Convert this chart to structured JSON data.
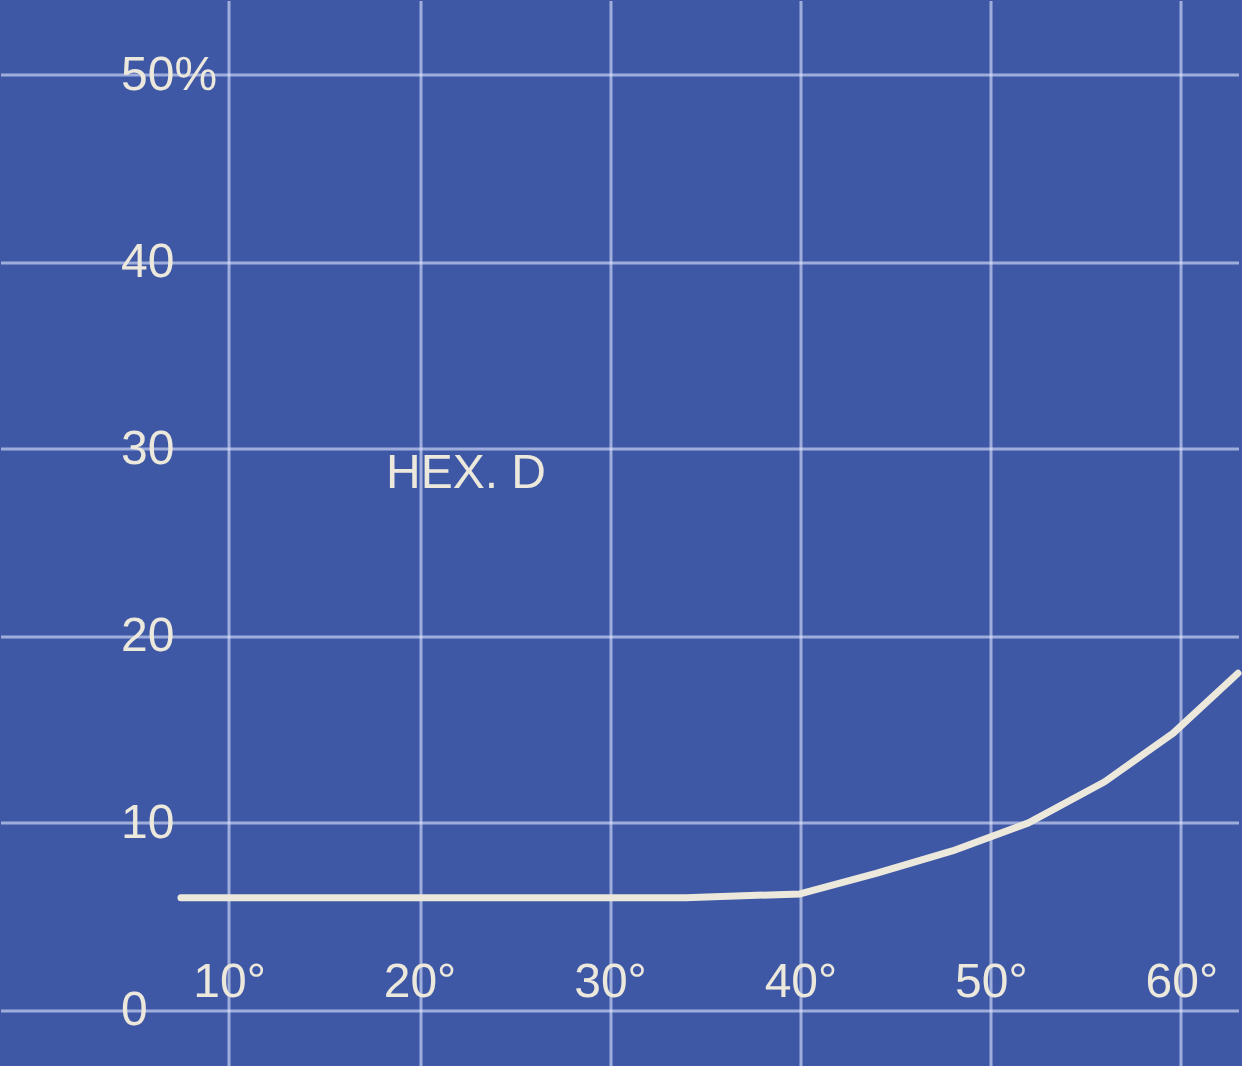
{
  "chart_data": {
    "type": "line",
    "x": [
      7.5,
      15,
      20,
      25,
      30,
      34,
      40,
      44,
      48,
      52,
      56,
      59.6,
      63
    ],
    "series": [
      {
        "color": "#ece9dc",
        "values": [
          6,
          6,
          6,
          6,
          6,
          6,
          6.2,
          7.3,
          8.5,
          10,
          12.2,
          14.8,
          18
        ]
      }
    ],
    "xlim": [
      -2,
      63
    ],
    "ylim": [
      -3,
      54
    ],
    "xticks": [
      {
        "value": 10,
        "label": "10°"
      },
      {
        "value": 20,
        "label": "20°"
      },
      {
        "value": 30,
        "label": "30°"
      },
      {
        "value": 40,
        "label": "40°"
      },
      {
        "value": 50,
        "label": "50°"
      },
      {
        "value": 60,
        "label": "60°"
      }
    ],
    "yticks": [
      0,
      10,
      20,
      30,
      40,
      {
        "value": 50,
        "label": "50%"
      }
    ],
    "annotations": [
      "HEX. D"
    ],
    "grid": true,
    "marker": "none",
    "line_style": "solid"
  }
}
